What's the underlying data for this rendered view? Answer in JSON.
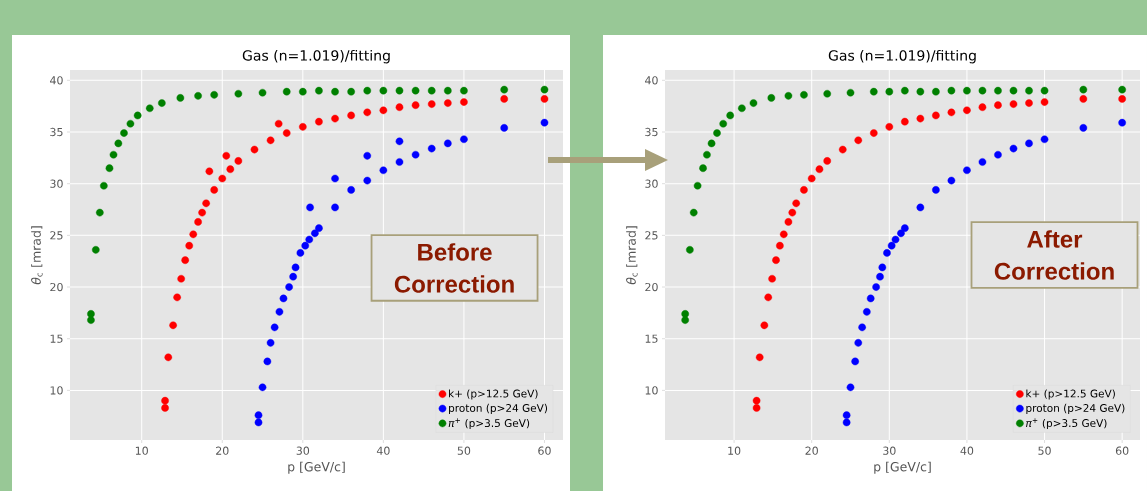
{
  "chart_data": [
    {
      "type": "scatter",
      "title": "Gas (n=1.019)/fitting",
      "xlabel": "p [GeV/c]",
      "ylabel": "*θ*$_{c}$ [mrad]",
      "xlim": [
        1.1,
        62.3
      ],
      "ylim": [
        5.2,
        41
      ],
      "xticks": [
        10,
        20,
        30,
        40,
        50,
        60
      ],
      "yticks": [
        10,
        15,
        20,
        25,
        30,
        35,
        40
      ],
      "grid": true,
      "legend": "bottom right",
      "annotations": [
        "Before Correction"
      ],
      "series": [
        {
          "name": "k+ (p>12.5 GeV)",
          "color": "#ff0000",
          "x": [
            12.9,
            12.9,
            13.3,
            13.9,
            14.4,
            14.9,
            15.4,
            15.9,
            16.4,
            17,
            17.5,
            18,
            18.4,
            19,
            20,
            20.5,
            21,
            22,
            24,
            26,
            27,
            28,
            30,
            32,
            34,
            36,
            38,
            40,
            42,
            44,
            46,
            48,
            50,
            55,
            60
          ],
          "values": [
            8.3,
            9.0,
            13.2,
            16.3,
            19.0,
            20.8,
            22.6,
            24.0,
            25.1,
            26.3,
            27.2,
            28.1,
            31.2,
            29.4,
            30.5,
            32.7,
            31.4,
            32.2,
            33.3,
            34.2,
            35.8,
            34.9,
            35.5,
            36.0,
            36.3,
            36.6,
            36.9,
            37.1,
            37.4,
            37.6,
            37.7,
            37.8,
            37.9,
            38.2,
            38.2
          ]
        },
        {
          "name": "proton (p>24 GeV)",
          "color": "#0000ff",
          "x": [
            24.5,
            24.5,
            25.0,
            25.6,
            26.0,
            26.5,
            27.1,
            27.6,
            28.3,
            28.8,
            29.1,
            29.7,
            30.3,
            30.8,
            30.9,
            31.5,
            32,
            34,
            34,
            36,
            38,
            38,
            40,
            42,
            42,
            44,
            46,
            48,
            50,
            55,
            60
          ],
          "values": [
            6.9,
            7.6,
            10.3,
            12.8,
            14.6,
            16.1,
            17.6,
            18.9,
            20.0,
            21.0,
            21.9,
            23.3,
            24.0,
            24.6,
            27.7,
            25.2,
            25.7,
            27.7,
            30.5,
            29.4,
            30.3,
            32.7,
            31.3,
            32.1,
            34.1,
            32.8,
            33.4,
            33.9,
            34.3,
            35.4,
            35.9
          ]
        },
        {
          "name": "*π*$^{+}$ (p>3.5 GeV)",
          "color": "#008000",
          "x": [
            3.7,
            3.7,
            4.3,
            4.8,
            5.3,
            6.0,
            6.5,
            7.1,
            7.8,
            8.6,
            9.5,
            11,
            12.5,
            14.8,
            17,
            19,
            22,
            25,
            28,
            30,
            32,
            34,
            36,
            38,
            40,
            42,
            44,
            46,
            48,
            50,
            55,
            60
          ],
          "values": [
            16.8,
            17.4,
            23.6,
            27.2,
            29.8,
            31.5,
            32.8,
            33.9,
            34.9,
            35.8,
            36.6,
            37.3,
            37.8,
            38.3,
            38.5,
            38.6,
            38.7,
            38.8,
            38.9,
            38.9,
            39.0,
            38.9,
            38.9,
            39.0,
            39.0,
            39.0,
            39.0,
            39.0,
            39.0,
            39.0,
            39.1,
            39.1
          ]
        }
      ]
    },
    {
      "type": "scatter",
      "title": "Gas (n=1.019)/fitting",
      "xlabel": "p [GeV/c]",
      "ylabel": "*θ*$_{c}$ [mrad]",
      "xlim": [
        1.1,
        62.3
      ],
      "ylim": [
        5.2,
        41
      ],
      "xticks": [
        10,
        20,
        30,
        40,
        50,
        60
      ],
      "yticks": [
        10,
        15,
        20,
        25,
        30,
        35,
        40
      ],
      "grid": true,
      "legend": "bottom right",
      "annotations": [
        "After Correction"
      ],
      "series": [
        {
          "name": "k+ (p>12.5 GeV)",
          "color": "#ff0000",
          "x": [
            12.9,
            12.9,
            13.3,
            13.9,
            14.4,
            14.9,
            15.4,
            15.9,
            16.4,
            17,
            17.5,
            18,
            19,
            20,
            21,
            22,
            24,
            26,
            28,
            30,
            32,
            34,
            36,
            38,
            40,
            42,
            44,
            46,
            48,
            50,
            55,
            60
          ],
          "values": [
            8.3,
            9.0,
            13.2,
            16.3,
            19.0,
            20.8,
            22.6,
            24.0,
            25.1,
            26.3,
            27.2,
            28.1,
            29.4,
            30.5,
            31.4,
            32.2,
            33.3,
            34.2,
            34.9,
            35.5,
            36.0,
            36.3,
            36.6,
            36.9,
            37.1,
            37.4,
            37.6,
            37.7,
            37.8,
            37.9,
            38.2,
            38.2
          ]
        },
        {
          "name": "proton (p>24 GeV)",
          "color": "#0000ff",
          "x": [
            24.5,
            24.5,
            25.0,
            25.6,
            26.0,
            26.5,
            27.1,
            27.6,
            28.3,
            28.8,
            29.1,
            29.7,
            30.3,
            30.8,
            31.5,
            32,
            34,
            36,
            38,
            40,
            42,
            44,
            46,
            48,
            50,
            55,
            60
          ],
          "values": [
            6.9,
            7.6,
            10.3,
            12.8,
            14.6,
            16.1,
            17.6,
            18.9,
            20.0,
            21.0,
            21.9,
            23.3,
            24.0,
            24.6,
            25.2,
            25.7,
            27.7,
            29.4,
            30.3,
            31.3,
            32.1,
            32.8,
            33.4,
            33.9,
            34.3,
            35.4,
            35.9
          ]
        },
        {
          "name": "*π*$^{+}$ (p>3.5 GeV)",
          "color": "#008000",
          "x": [
            3.7,
            3.7,
            4.3,
            4.8,
            5.3,
            6.0,
            6.5,
            7.1,
            7.8,
            8.6,
            9.5,
            11,
            12.5,
            14.8,
            17,
            19,
            22,
            25,
            28,
            30,
            32,
            34,
            36,
            38,
            40,
            42,
            44,
            46,
            48,
            50,
            55,
            60
          ],
          "values": [
            16.8,
            17.4,
            23.6,
            27.2,
            29.8,
            31.5,
            32.8,
            33.9,
            34.9,
            35.8,
            36.6,
            37.3,
            37.8,
            38.3,
            38.5,
            38.6,
            38.7,
            38.8,
            38.9,
            38.9,
            39.0,
            38.9,
            38.9,
            39.0,
            39.0,
            39.0,
            39.0,
            39.0,
            39.0,
            39.0,
            39.1,
            39.1
          ]
        }
      ]
    }
  ]
}
